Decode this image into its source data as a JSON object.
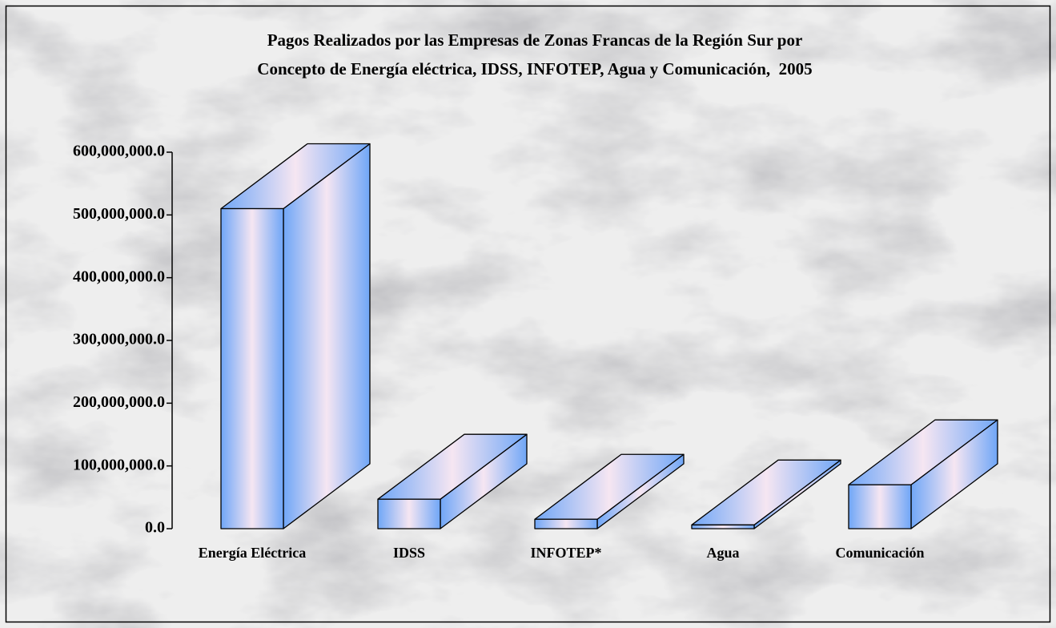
{
  "chart_data": {
    "type": "bar3d",
    "title": [
      "Pagos Realizados por las Empresas de Zonas Francas de la Región Sur por",
      "Concepto de Energía eléctrica, IDSS, INFOTEP, Agua y Comunicación,  2005"
    ],
    "categories": [
      "Energía Eléctrica",
      "IDSS",
      "INFOTEP*",
      "Agua",
      "Comunicación"
    ],
    "values": [
      510000000,
      47000000,
      15000000,
      6000000,
      70000000
    ],
    "color": "#6fa6f7",
    "ylim": [
      0,
      600000000
    ],
    "yticks": [
      {
        "value": 0,
        "label": "0.0"
      },
      {
        "value": 100000000,
        "label": "100,000,000.0"
      },
      {
        "value": 200000000,
        "label": "200,000,000.0"
      },
      {
        "value": 300000000,
        "label": "300,000,000.0"
      },
      {
        "value": 400000000,
        "label": "400,000,000.0"
      },
      {
        "value": 500000000,
        "label": "500,000,000.0"
      },
      {
        "value": 600000000,
        "label": "600,000,000.0"
      }
    ],
    "grid": false
  }
}
